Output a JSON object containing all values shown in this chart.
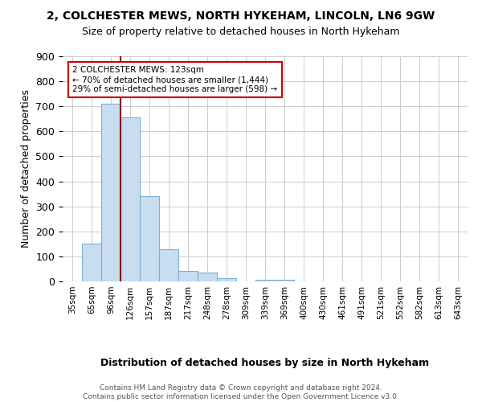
{
  "title1": "2, COLCHESTER MEWS, NORTH HYKEHAM, LINCOLN, LN6 9GW",
  "title2": "Size of property relative to detached houses in North Hykeham",
  "xlabel": "Distribution of detached houses by size in North Hykeham",
  "ylabel": "Number of detached properties",
  "footer1": "Contains HM Land Registry data © Crown copyright and database right 2024.",
  "footer2": "Contains public sector information licensed under the Open Government Licence v3.0.",
  "bins": [
    "35sqm",
    "65sqm",
    "96sqm",
    "126sqm",
    "157sqm",
    "187sqm",
    "217sqm",
    "248sqm",
    "278sqm",
    "309sqm",
    "339sqm",
    "369sqm",
    "400sqm",
    "430sqm",
    "461sqm",
    "491sqm",
    "521sqm",
    "552sqm",
    "582sqm",
    "613sqm",
    "643sqm"
  ],
  "values": [
    0,
    150,
    710,
    655,
    340,
    130,
    42,
    35,
    12,
    0,
    8,
    8,
    0,
    0,
    0,
    0,
    0,
    0,
    0,
    0,
    0
  ],
  "bar_color": "#c9ddf0",
  "bar_edge_color": "#7bafd4",
  "marker_color": "#8b0000",
  "ylim": [
    0,
    900
  ],
  "yticks": [
    0,
    100,
    200,
    300,
    400,
    500,
    600,
    700,
    800,
    900
  ],
  "annotation_line1": "2 COLCHESTER MEWS: 123sqm",
  "annotation_line2": "← 70% of detached houses are smaller (1,444)",
  "annotation_line3": "29% of semi-detached houses are larger (598) →",
  "property_bin_index": 2.5
}
